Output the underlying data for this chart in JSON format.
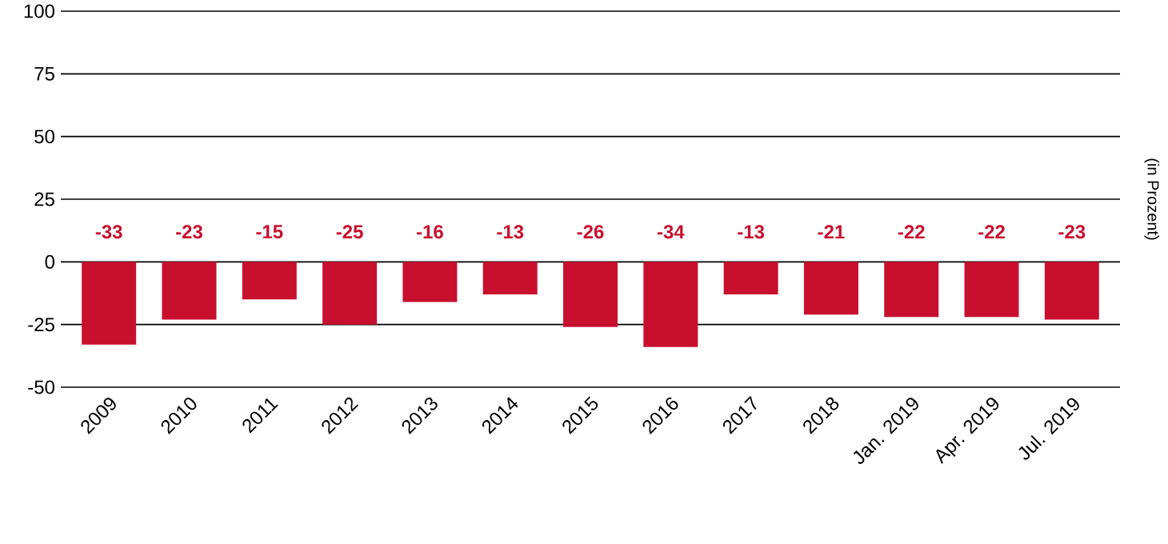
{
  "chart_data": {
    "type": "bar",
    "ylabel": "(in Prozent)",
    "categories": [
      "2009",
      "2010",
      "2011",
      "2012",
      "2013",
      "2014",
      "2015",
      "2016",
      "2017",
      "2018",
      "Jan. 2019",
      "Apr. 2019",
      "Jul. 2019"
    ],
    "values": [
      -33,
      -23,
      -15,
      -25,
      -16,
      -13,
      -26,
      -34,
      -13,
      -21,
      -22,
      -22,
      -23
    ],
    "color": "#c8102e",
    "ylim": [
      -50,
      100
    ],
    "yticks": [
      -50,
      -25,
      0,
      25,
      50,
      75,
      100
    ],
    "grid": "y",
    "data_labels": true
  }
}
